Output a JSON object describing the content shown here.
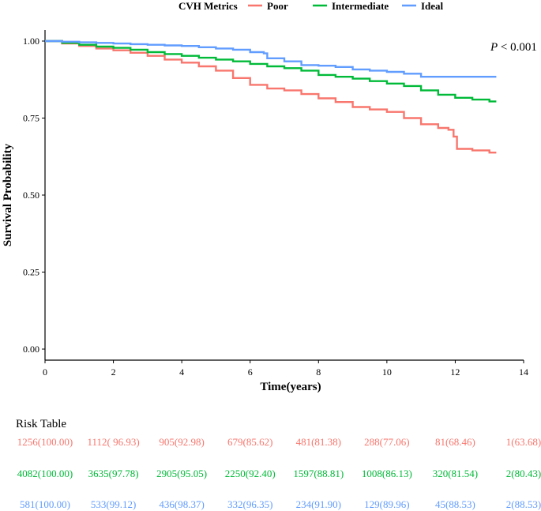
{
  "chart_data": {
    "type": "line",
    "subtype": "kaplan-meier",
    "title": "",
    "legend_title": "CVH Metrics",
    "legend_position": "top",
    "xlabel": "Time(years)",
    "ylabel": "Survival Probability",
    "xlim": [
      0,
      14
    ],
    "ylim": [
      0,
      1.0
    ],
    "x_ticks": [
      0,
      2,
      4,
      6,
      8,
      10,
      12,
      14
    ],
    "x_tick_labels": [
      "0",
      "2",
      "4",
      "6",
      "8",
      "10",
      "12",
      "14"
    ],
    "y_ticks": [
      0,
      0.25,
      0.5,
      0.75,
      1.0
    ],
    "y_tick_labels": [
      "0.00",
      "0.25",
      "0.50",
      "0.75",
      "1.00"
    ],
    "grid": false,
    "annotation": {
      "p_italic": "P",
      "p_rest": " < 0.001"
    },
    "series": [
      {
        "name": "Poor",
        "color": "#F8766D",
        "x": [
          0,
          0.5,
          1.0,
          1.5,
          2.0,
          2.5,
          3.0,
          3.5,
          4.0,
          4.5,
          5.0,
          5.5,
          6.0,
          6.5,
          7.0,
          7.5,
          8.0,
          8.5,
          9.0,
          9.5,
          10.0,
          10.5,
          11.0,
          11.5,
          11.8,
          11.95,
          12.05,
          12.5,
          13.0,
          13.2
        ],
        "y": [
          1.0,
          0.992,
          0.984,
          0.976,
          0.97,
          0.962,
          0.952,
          0.94,
          0.93,
          0.918,
          0.904,
          0.88,
          0.858,
          0.846,
          0.84,
          0.828,
          0.814,
          0.802,
          0.786,
          0.778,
          0.77,
          0.75,
          0.73,
          0.718,
          0.712,
          0.69,
          0.65,
          0.645,
          0.638,
          0.638
        ]
      },
      {
        "name": "Intermediate",
        "color": "#00BA38",
        "x": [
          0,
          0.5,
          1.0,
          1.5,
          2.0,
          2.5,
          3.0,
          3.5,
          4.0,
          4.5,
          5.0,
          5.5,
          6.0,
          6.5,
          7.0,
          7.5,
          8.0,
          8.5,
          9.0,
          9.5,
          10.0,
          10.5,
          11.0,
          11.5,
          12.0,
          12.5,
          13.0,
          13.2
        ],
        "y": [
          1.0,
          0.994,
          0.988,
          0.982,
          0.978,
          0.972,
          0.964,
          0.958,
          0.952,
          0.946,
          0.94,
          0.934,
          0.926,
          0.918,
          0.912,
          0.904,
          0.89,
          0.884,
          0.878,
          0.87,
          0.862,
          0.854,
          0.84,
          0.826,
          0.816,
          0.81,
          0.804,
          0.804
        ]
      },
      {
        "name": "Ideal",
        "color": "#619CFF",
        "x": [
          0,
          0.5,
          1.0,
          1.5,
          2.0,
          2.5,
          3.0,
          3.5,
          4.0,
          4.5,
          5.0,
          5.5,
          6.0,
          6.4,
          6.5,
          7.0,
          7.5,
          8.0,
          8.5,
          9.0,
          9.5,
          10.0,
          10.5,
          11.0,
          11.5,
          12.0,
          12.5,
          13.0,
          13.2
        ],
        "y": [
          1.0,
          0.998,
          0.996,
          0.994,
          0.992,
          0.99,
          0.988,
          0.986,
          0.984,
          0.98,
          0.976,
          0.972,
          0.964,
          0.96,
          0.944,
          0.934,
          0.922,
          0.92,
          0.916,
          0.908,
          0.904,
          0.9,
          0.894,
          0.884,
          0.884,
          0.884,
          0.884,
          0.884,
          0.884
        ]
      }
    ]
  },
  "risk_table": {
    "title": "Risk Table",
    "rows": [
      {
        "group": "Poor",
        "color": "#F8766D",
        "cells": [
          "1256(100.00)",
          "1112( 96.93)",
          "905(92.98)",
          "679(85.62)",
          "481(81.38)",
          "288(77.06)",
          "81(68.46)",
          "1(63.68)"
        ]
      },
      {
        "group": "Intermediate",
        "color": "#00BA38",
        "cells": [
          "4082(100.00)",
          "3635(97.78)",
          "2905(95.05)",
          "2250(92.40)",
          "1597(88.81)",
          "1008(86.13)",
          "320(81.54)",
          "2(80.43)"
        ]
      },
      {
        "group": "Ideal",
        "color": "#619CFF",
        "cells": [
          "581(100.00)",
          "533(99.12)",
          "436(98.37)",
          "332(96.35)",
          "234(91.90)",
          "129(89.96)",
          "45(88.53)",
          "2(88.53)"
        ]
      }
    ]
  }
}
